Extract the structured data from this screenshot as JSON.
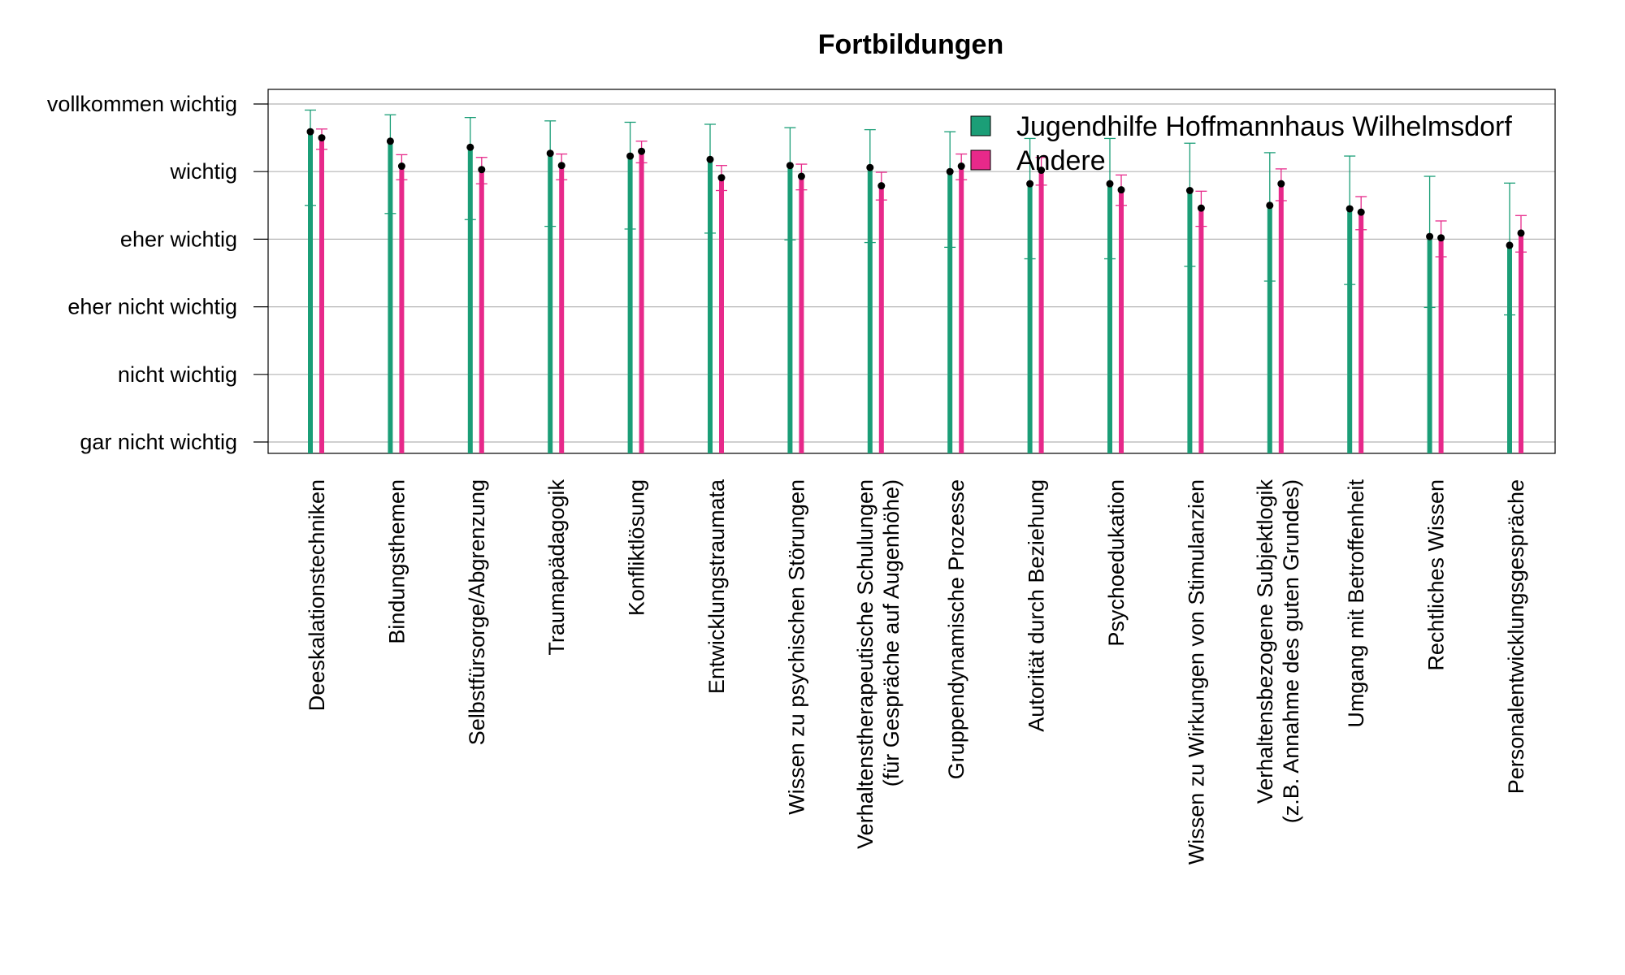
{
  "chart_data": {
    "type": "bar",
    "title": "Fortbildungen",
    "xlabel": "",
    "ylabel": "",
    "y_tick_labels": [
      "gar nicht wichtig",
      "nicht wichtig",
      "eher nicht wichtig",
      "eher wichtig",
      "wichtig",
      "vollkommen wichtig"
    ],
    "ylim": [
      1,
      6
    ],
    "grid": true,
    "legend_position": "top-right",
    "categories": [
      "Deeskalationstechniken",
      "Bindungsthemen",
      "Selbstfürsorge/Abgrenzung",
      "Traumapädagogik",
      "Konfliktlösung",
      "Entwicklungstraumata",
      "Wissen zu psychischen Störungen",
      "Verhaltenstherapeutische Schulungen\n(für Gespräche auf Augenhöhe)",
      "Gruppendynamische Prozesse",
      "Autorität durch Beziehung",
      "Psychoedukation",
      "Wissen zu Wirkungen von Stimulanzien",
      "Verhaltensbezogene Subjektlogik\n(z.B. Annahme des guten Grundes)",
      "Umgang mit Betroffenheit",
      "Rechtliches Wissen",
      "Personalentwicklungsgespräche"
    ],
    "series": [
      {
        "name": "Jugendhilfe Hoffmannhaus Wilhelmsdorf",
        "color": "#1b9e77",
        "values": [
          5.59,
          5.45,
          5.36,
          5.27,
          5.23,
          5.18,
          5.09,
          5.06,
          5.0,
          4.82,
          4.82,
          4.72,
          4.5,
          4.45,
          4.04,
          3.91
        ],
        "error_low": [
          4.5,
          4.38,
          4.29,
          4.19,
          4.15,
          4.09,
          3.99,
          3.95,
          3.88,
          3.71,
          3.71,
          3.6,
          3.38,
          3.33,
          2.99,
          2.88
        ],
        "error_high": [
          5.91,
          5.84,
          5.8,
          5.75,
          5.73,
          5.7,
          5.65,
          5.62,
          5.59,
          5.49,
          5.49,
          5.42,
          5.28,
          5.23,
          4.93,
          4.83
        ]
      },
      {
        "name": "Andere",
        "color": "#e7298a",
        "values": [
          5.5,
          5.08,
          5.03,
          5.09,
          5.3,
          4.91,
          4.93,
          4.79,
          5.08,
          5.02,
          4.73,
          4.46,
          4.82,
          4.4,
          4.02,
          4.09
        ],
        "error_low": [
          5.33,
          4.88,
          4.82,
          4.88,
          5.13,
          4.72,
          4.73,
          4.58,
          4.88,
          4.8,
          4.5,
          4.19,
          4.57,
          4.14,
          3.74,
          3.81
        ],
        "error_high": [
          5.63,
          5.25,
          5.21,
          5.26,
          5.45,
          5.09,
          5.11,
          4.99,
          5.26,
          5.21,
          4.95,
          4.71,
          5.04,
          4.63,
          4.27,
          4.35
        ]
      }
    ]
  }
}
